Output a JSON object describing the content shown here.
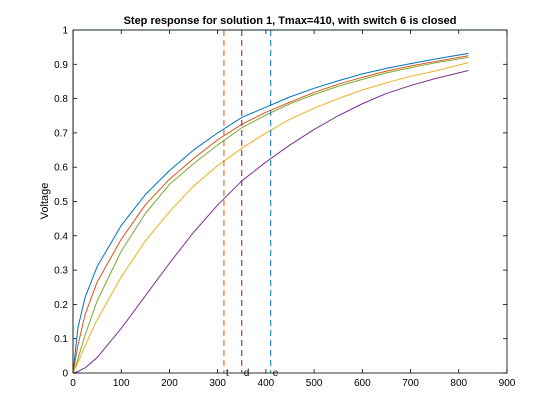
{
  "chart_data": {
    "type": "line",
    "title": "Step response for solution 1, Tmax=410, with switch 6 is closed",
    "xlabel": "",
    "ylabel": "Voltage",
    "xlim": [
      0,
      900
    ],
    "ylim": [
      0,
      1
    ],
    "xticks": [
      0,
      100,
      200,
      300,
      400,
      500,
      600,
      700,
      800,
      900
    ],
    "yticks": [
      0,
      0.1,
      0.2,
      0.3,
      0.4,
      0.5,
      0.6,
      0.7,
      0.8,
      0.9,
      1
    ],
    "grid": false,
    "series": [
      {
        "color": "#0072BD",
        "x": [
          0,
          10,
          25,
          50,
          100,
          150,
          200,
          250,
          300,
          350,
          400,
          450,
          500,
          550,
          600,
          650,
          700,
          750,
          820
        ],
        "y": [
          0,
          0.13,
          0.22,
          0.31,
          0.43,
          0.52,
          0.59,
          0.65,
          0.7,
          0.745,
          0.775,
          0.805,
          0.83,
          0.852,
          0.872,
          0.888,
          0.902,
          0.915,
          0.932
        ]
      },
      {
        "color": "#D95319",
        "x": [
          0,
          10,
          25,
          50,
          100,
          150,
          200,
          250,
          300,
          350,
          400,
          450,
          500,
          550,
          600,
          650,
          700,
          750,
          820
        ],
        "y": [
          0,
          0.08,
          0.17,
          0.265,
          0.39,
          0.49,
          0.565,
          0.625,
          0.68,
          0.725,
          0.76,
          0.79,
          0.818,
          0.842,
          0.862,
          0.88,
          0.895,
          0.908,
          0.925
        ]
      },
      {
        "color": "#77AC30",
        "x": [
          0,
          10,
          25,
          50,
          100,
          150,
          200,
          250,
          300,
          350,
          400,
          450,
          500,
          550,
          600,
          650,
          700,
          750,
          820
        ],
        "y": [
          0,
          0.04,
          0.11,
          0.21,
          0.355,
          0.465,
          0.55,
          0.61,
          0.665,
          0.715,
          0.752,
          0.785,
          0.812,
          0.836,
          0.856,
          0.875,
          0.89,
          0.904,
          0.92
        ]
      },
      {
        "color": "#EDB120",
        "x": [
          0,
          10,
          25,
          50,
          100,
          150,
          200,
          250,
          300,
          350,
          400,
          450,
          500,
          550,
          600,
          650,
          700,
          750,
          820
        ],
        "y": [
          0,
          0.03,
          0.08,
          0.155,
          0.28,
          0.385,
          0.47,
          0.545,
          0.605,
          0.655,
          0.7,
          0.74,
          0.772,
          0.8,
          0.825,
          0.846,
          0.865,
          0.88,
          0.905
        ]
      },
      {
        "color": "#7E2F8E",
        "x": [
          0,
          10,
          25,
          50,
          100,
          150,
          200,
          250,
          300,
          350,
          400,
          450,
          500,
          550,
          600,
          650,
          700,
          750,
          820
        ],
        "y": [
          0,
          0.004,
          0.015,
          0.045,
          0.13,
          0.225,
          0.32,
          0.41,
          0.49,
          0.56,
          0.615,
          0.665,
          0.71,
          0.75,
          0.785,
          0.815,
          0.838,
          0.858,
          0.882
        ]
      },
      {
        "color": "#4DBEEE",
        "x": [
          0,
          0.5,
          1,
          900
        ],
        "y": [
          0,
          1,
          1,
          1
        ]
      }
    ],
    "vlines": [
      {
        "x": 313,
        "color": "#D95319",
        "label": "t"
      },
      {
        "x": 350,
        "color": "#A2142F",
        "label": "d"
      },
      {
        "x": 410,
        "color": "#0072BD",
        "label": "e"
      }
    ]
  }
}
